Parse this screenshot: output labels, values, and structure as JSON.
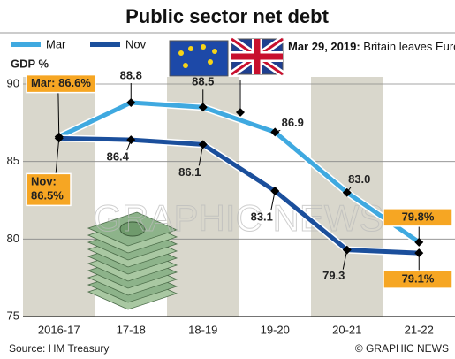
{
  "chart_data": {
    "type": "line",
    "title": "Public sector net debt",
    "ylabel": "GDP %",
    "categories": [
      "2016-17",
      "17-18",
      "18-19",
      "19-20",
      "20-21",
      "21-22"
    ],
    "series": [
      {
        "name": "Mar",
        "color": "#3fa9e0",
        "values": [
          86.6,
          88.8,
          88.5,
          86.9,
          83.0,
          79.8
        ],
        "value_labels": [
          "Mar: 86.6%",
          "88.8",
          "88.5",
          "86.9",
          "83.0",
          "79.8%"
        ]
      },
      {
        "name": "Nov",
        "color": "#1b4f9c",
        "values": [
          86.5,
          86.4,
          86.1,
          83.1,
          79.3,
          79.1
        ],
        "value_labels": [
          "Nov: 86.5%",
          "86.4",
          "86.1",
          "83.1",
          "79.3",
          "79.1%"
        ]
      }
    ],
    "ylim": [
      75,
      90
    ],
    "yticks": [
      75,
      80,
      85,
      90
    ],
    "grid": true,
    "annotation": {
      "date": "Mar 29, 2019:",
      "text": "Britain leaves European Union"
    },
    "watermark": "GRAPHIC NEWS",
    "source": "Source: HM Treasury",
    "credit": "© GRAPHIC NEWS"
  }
}
